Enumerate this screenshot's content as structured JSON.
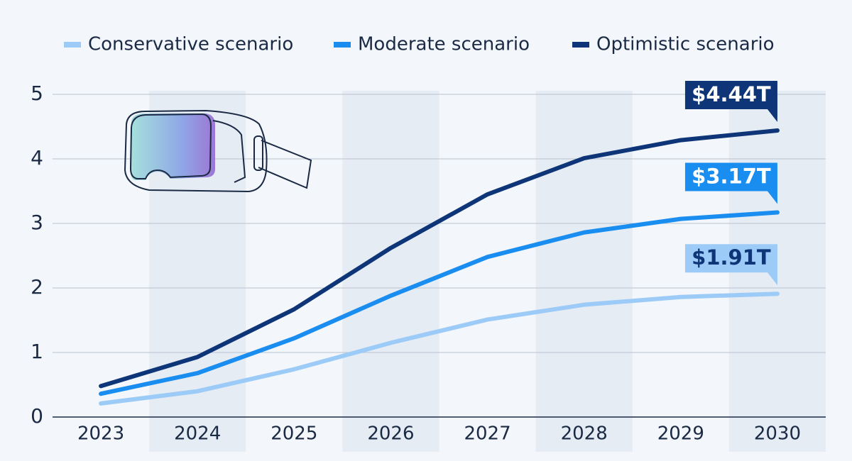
{
  "chart_data": {
    "type": "line",
    "categories": [
      "2023",
      "2024",
      "2025",
      "2026",
      "2027",
      "2028",
      "2029",
      "2030"
    ],
    "series": [
      {
        "name": "Conservative scenario",
        "color": "#9ccbf7",
        "label_color": "#0d3577",
        "values": [
          0.21,
          0.4,
          0.74,
          1.15,
          1.51,
          1.74,
          1.86,
          1.91
        ],
        "value_labels": [
          null,
          null,
          null,
          null,
          null,
          null,
          null,
          "$1.91T"
        ]
      },
      {
        "name": "Moderate scenario",
        "color": "#1a8df0",
        "label_color": "#ffffff",
        "values": [
          0.36,
          0.68,
          1.22,
          1.88,
          2.48,
          2.86,
          3.07,
          3.17
        ],
        "value_labels": [
          null,
          null,
          null,
          null,
          null,
          null,
          null,
          "$3.17T"
        ]
      },
      {
        "name": "Optimistic scenario",
        "color": "#0d3577",
        "label_color": "#ffffff",
        "values": [
          0.48,
          0.93,
          1.67,
          2.62,
          3.45,
          4.01,
          4.29,
          4.44
        ],
        "value_labels": [
          null,
          null,
          null,
          null,
          null,
          null,
          null,
          "$4.44T"
        ]
      }
    ],
    "ylim": [
      0,
      5
    ],
    "yticks": [
      0,
      1,
      2,
      3,
      4,
      5
    ],
    "grid": true
  }
}
